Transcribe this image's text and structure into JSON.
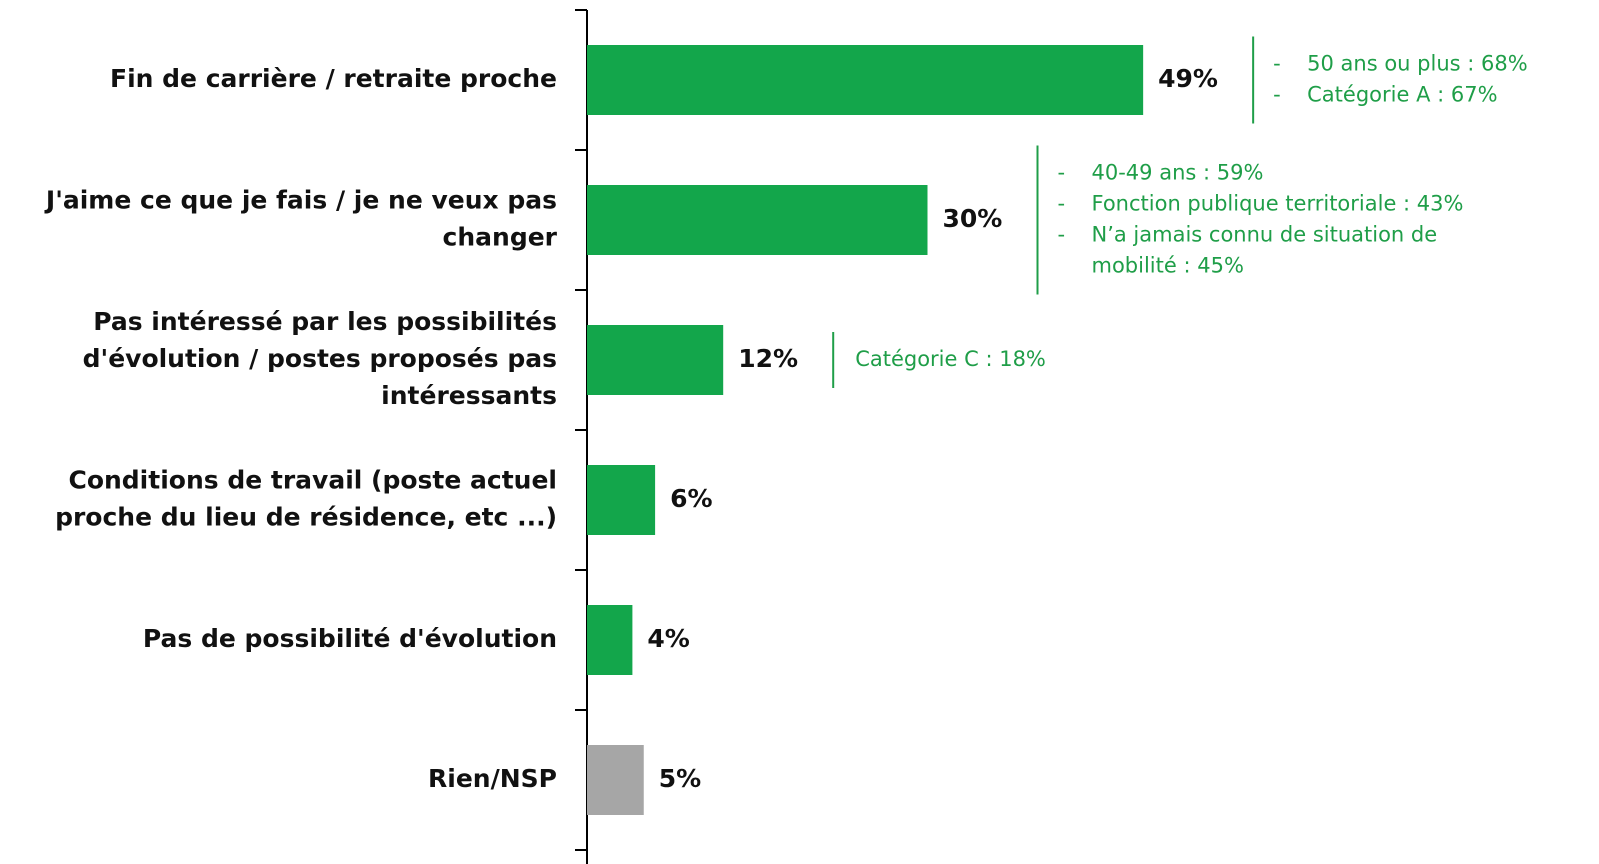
{
  "chart_data": {
    "type": "bar",
    "orientation": "horizontal",
    "categories": [
      [
        "Fin de carrière / retraite proche"
      ],
      [
        "J'aime ce que je fais / je ne veux pas",
        "changer"
      ],
      [
        "Pas intéressé par les possibilités",
        "d'évolution / postes proposés pas",
        "intéressants"
      ],
      [
        "Conditions de travail (poste actuel",
        "proche du lieu de résidence, etc ...)"
      ],
      [
        "Pas de possibilité d'évolution"
      ],
      [
        "Rien/NSP"
      ]
    ],
    "values": [
      49,
      30,
      12,
      6,
      4,
      5
    ],
    "value_labels": [
      "49%",
      "30%",
      "12%",
      "6%",
      "4%",
      "5%"
    ],
    "colors": [
      "#13a64b",
      "#13a64b",
      "#13a64b",
      "#13a64b",
      "#13a64b",
      "#a6a6a6"
    ],
    "annotations": [
      {
        "bullet": "-",
        "items": [
          [
            "50 ans ou plus : 68%"
          ],
          [
            "Catégorie A : 67%"
          ]
        ]
      },
      {
        "bullet": "-",
        "items": [
          [
            "40-49 ans : 59%"
          ],
          [
            "Fonction publique territoriale : 43%"
          ],
          [
            "N’a jamais connu de situation de",
            "mobilité : 45%"
          ]
        ]
      },
      {
        "items": [
          [
            "Catégorie C : 18%"
          ]
        ]
      }
    ]
  }
}
